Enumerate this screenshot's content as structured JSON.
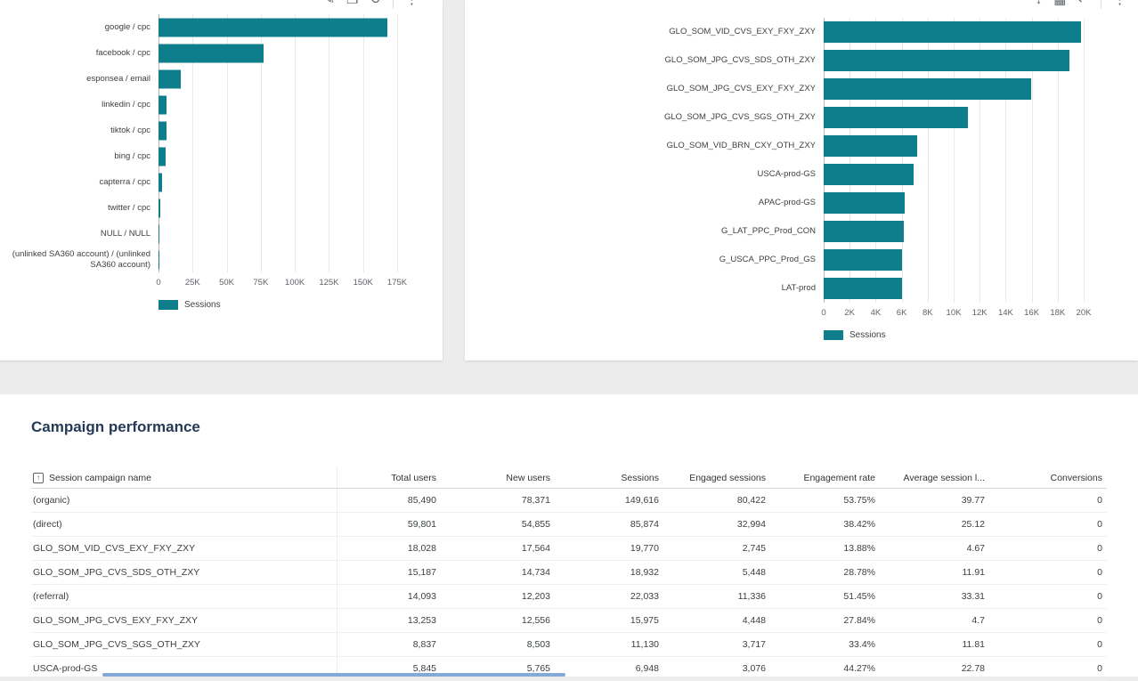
{
  "section_title": "Campaign performance",
  "theme": {
    "bar_color": "#0e7e8c",
    "title_color": "#263a57",
    "card_background": "#ffffff",
    "page_background": "#ececec"
  },
  "left_card": {
    "toolbar_icons": [
      "edit-icon",
      "copy-icon",
      "refresh-icon",
      "more-vert-icon"
    ]
  },
  "right_card": {
    "toolbar_icons": [
      "download-icon",
      "chart-icon",
      "share-icon",
      "more-vert-icon"
    ]
  },
  "chart_data": [
    {
      "type": "bar",
      "orientation": "horizontal",
      "title": "",
      "categories": [
        "google / cpc",
        "facebook / cpc",
        "esponsea / email",
        "linkedin / cpc",
        "tiktok / cpc",
        "bing / cpc",
        "capterra / cpc",
        "twitter / cpc",
        "NULL / NULL",
        "(unlinked SA360 account) / (unlinked SA360 account)"
      ],
      "values": [
        168000,
        77000,
        16000,
        6000,
        5800,
        5200,
        2600,
        1600,
        700,
        300
      ],
      "series_name": "Sessions",
      "xlim": [
        0,
        175000
      ],
      "x_ticks": [
        "0",
        "25K",
        "50K",
        "75K",
        "100K",
        "125K",
        "150K",
        "175K"
      ],
      "legend": [
        "Sessions"
      ],
      "legend_position": "bottom-left",
      "grid": true,
      "bar_color": "#0e7e8c"
    },
    {
      "type": "bar",
      "orientation": "horizontal",
      "title": "",
      "categories": [
        "GLO_SOM_VID_CVS_EXY_FXY_ZXY",
        "GLO_SOM_JPG_CVS_SDS_OTH_ZXY",
        "GLO_SOM_JPG_CVS_EXY_FXY_ZXY",
        "GLO_SOM_JPG_CVS_SGS_OTH_ZXY",
        "GLO_SOM_VID_BRN_CXY_OTH_ZXY",
        "USCA-prod-GS",
        "APAC-prod-GS",
        "G_LAT_PPC_Prod_CON",
        "G_USCA_PPC_Prod_GS",
        "LAT-prod"
      ],
      "values": [
        19770,
        18932,
        15975,
        11130,
        7200,
        6948,
        6200,
        6150,
        6000,
        6000
      ],
      "series_name": "Sessions",
      "xlim": [
        0,
        20000
      ],
      "x_ticks": [
        "0",
        "2K",
        "4K",
        "6K",
        "8K",
        "10K",
        "12K",
        "14K",
        "16K",
        "18K",
        "20K"
      ],
      "legend": [
        "Sessions"
      ],
      "legend_position": "bottom-left",
      "grid": true,
      "bar_color": "#0e7e8c"
    }
  ],
  "table": {
    "columns": [
      "Session campaign name",
      "Total users",
      "New users",
      "Sessions",
      "Engaged sessions",
      "Engagement rate",
      "Average session l...",
      "Conversions"
    ],
    "rows": [
      [
        "(organic)",
        "85,490",
        "78,371",
        "149,616",
        "80,422",
        "53.75%",
        "39.77",
        "0"
      ],
      [
        "(direct)",
        "59,801",
        "54,855",
        "85,874",
        "32,994",
        "38.42%",
        "25.12",
        "0"
      ],
      [
        "GLO_SOM_VID_CVS_EXY_FXY_ZXY",
        "18,028",
        "17,564",
        "19,770",
        "2,745",
        "13.88%",
        "4.67",
        "0"
      ],
      [
        "GLO_SOM_JPG_CVS_SDS_OTH_ZXY",
        "15,187",
        "14,734",
        "18,932",
        "5,448",
        "28.78%",
        "11.91",
        "0"
      ],
      [
        "(referral)",
        "14,093",
        "12,203",
        "22,033",
        "11,336",
        "51.45%",
        "33.31",
        "0"
      ],
      [
        "GLO_SOM_JPG_CVS_EXY_FXY_ZXY",
        "13,253",
        "12,556",
        "15,975",
        "4,448",
        "27.84%",
        "4.7",
        "0"
      ],
      [
        "GLO_SOM_JPG_CVS_SGS_OTH_ZXY",
        "8,837",
        "8,503",
        "11,130",
        "3,717",
        "33.4%",
        "11.81",
        "0"
      ],
      [
        "USCA-prod-GS",
        "5,845",
        "5,765",
        "6,948",
        "3,076",
        "44.27%",
        "22.78",
        "0"
      ]
    ]
  }
}
